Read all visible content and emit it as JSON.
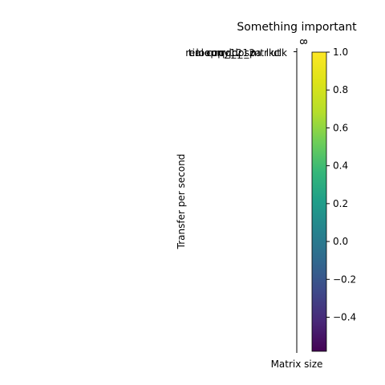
{
  "chart_data": {
    "type": "heatmap",
    "title": "Something important",
    "xlabel": "Matrix size",
    "ylabel": "Transfer per second",
    "x_tick_labels": [
      "8"
    ],
    "row_labels": [
      "real",
      "time",
      "loop",
      "run",
      "copy",
      "rq_1",
      "rq_2",
      "dp_1",
      "dp_2",
      "spa",
      "mtr",
      "lk",
      "ut",
      "clk"
    ],
    "colorbar": {
      "colormap": "viridis",
      "vmin": -0.58,
      "vmax": 1.0,
      "ticks": [
        1.0,
        0.8,
        0.6,
        0.4,
        0.2,
        0.0,
        -0.2,
        -0.4
      ],
      "tick_labels": [
        "1.0",
        "0.8",
        "0.6",
        "0.4",
        "0.2",
        "0.0",
        "−0.2",
        "−0.4"
      ]
    },
    "grid": false,
    "legend": false
  }
}
